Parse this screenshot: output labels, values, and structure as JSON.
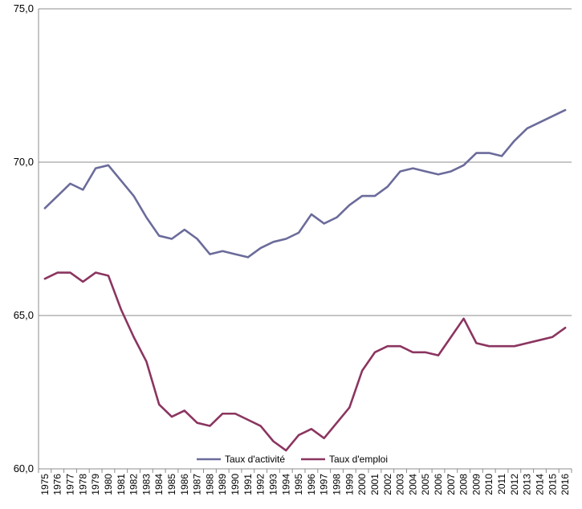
{
  "chart_data": {
    "type": "line",
    "title": "",
    "xlabel": "",
    "ylabel": "",
    "ylim": [
      60,
      75
    ],
    "yticks": [
      "60,0",
      "65,0",
      "70,0",
      "75,0"
    ],
    "ytick_values": [
      60,
      65,
      70,
      75
    ],
    "grid": "horizontal",
    "legend_position": "bottom-center",
    "categories": [
      "1975",
      "1976",
      "1977",
      "1978",
      "1979",
      "1980",
      "1981",
      "1982",
      "1983",
      "1984",
      "1985",
      "1986",
      "1987",
      "1988",
      "1989",
      "1990",
      "1991",
      "1992",
      "1993",
      "1994",
      "1995",
      "1996",
      "1997",
      "1998",
      "1999",
      "2000",
      "2001",
      "2002",
      "2003",
      "2004",
      "2005",
      "2006",
      "2007",
      "2008",
      "2009",
      "2010",
      "2011",
      "2012",
      "2013",
      "2014",
      "2015",
      "2016"
    ],
    "series": [
      {
        "name": "Taux d'activité",
        "color": "#6b6b9b",
        "values": [
          68.5,
          68.9,
          69.3,
          69.1,
          69.8,
          69.9,
          69.4,
          68.9,
          68.2,
          67.6,
          67.5,
          67.8,
          67.5,
          67.0,
          67.1,
          67.0,
          66.9,
          67.2,
          67.4,
          67.5,
          67.7,
          68.3,
          68.0,
          68.2,
          68.6,
          68.9,
          68.9,
          69.2,
          69.7,
          69.8,
          69.7,
          69.6,
          69.7,
          69.9,
          70.3,
          70.3,
          70.2,
          70.7,
          71.1,
          71.3,
          71.5,
          71.7
        ]
      },
      {
        "name": "Taux d'emploi",
        "color": "#8b3560",
        "values": [
          66.2,
          66.4,
          66.4,
          66.1,
          66.4,
          66.3,
          65.2,
          64.3,
          63.5,
          62.1,
          61.7,
          61.9,
          61.5,
          61.4,
          61.8,
          61.8,
          61.6,
          61.4,
          60.9,
          60.6,
          61.1,
          61.3,
          61.0,
          61.5,
          62.0,
          63.2,
          63.8,
          64.0,
          64.0,
          63.8,
          63.8,
          63.7,
          64.3,
          64.9,
          64.1,
          64.0,
          64.0,
          64.0,
          64.1,
          64.2,
          64.3,
          64.6
        ]
      }
    ]
  }
}
